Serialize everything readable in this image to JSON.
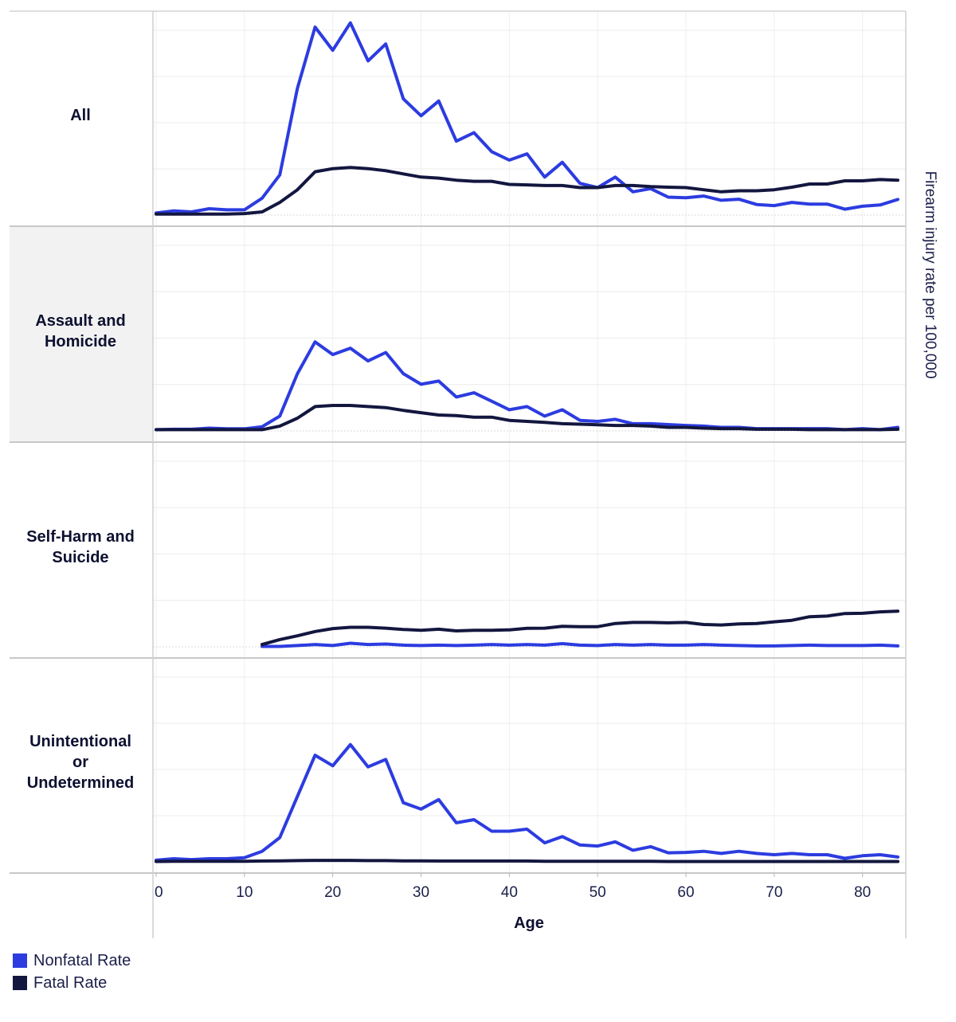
{
  "chart_data": {
    "type": "line",
    "title": "",
    "xlabel": "Age",
    "ylabel": "Firearm injury rate per 100,000",
    "xlim": [
      0,
      84
    ],
    "xticks": [
      0,
      10,
      20,
      30,
      40,
      50,
      60,
      70,
      80
    ],
    "grid": true,
    "legend_position": "bottom-left",
    "colors": {
      "nonfatal": "#2c3ce0",
      "fatal": "#13173f",
      "label_panel_highlight": "#f2f2f2"
    },
    "legend": [
      {
        "key": "nonfatal",
        "label": "Nonfatal Rate"
      },
      {
        "key": "fatal",
        "label": "Fatal Rate"
      }
    ],
    "panels": [
      {
        "label": "All",
        "label_lines": [
          "All"
        ],
        "ylim": [
          0,
          92
        ],
        "series": [
          {
            "key": "nonfatal",
            "name": "Nonfatal Rate",
            "x": [
              0,
              2,
              4,
              6,
              8,
              10,
              12,
              14,
              16,
              18,
              20,
              22,
              24,
              26,
              28,
              30,
              32,
              34,
              36,
              38,
              40,
              42,
              44,
              46,
              48,
              50,
              52,
              54,
              56,
              58,
              60,
              62,
              64,
              66,
              68,
              70,
              72,
              74,
              76,
              78,
              80,
              82,
              84
            ],
            "y": [
              1,
              2,
              1.5,
              3,
              2.5,
              2.5,
              8,
              19,
              60,
              89,
              78,
              91,
              73,
              81,
              55,
              47,
              54,
              35,
              39,
              30,
              26,
              29,
              18,
              25,
              15,
              13,
              18,
              11,
              12.5,
              8.5,
              8.2,
              9,
              7,
              7.5,
              5,
              4.5,
              6,
              5.2,
              5.2,
              2.8,
              4.2,
              4.8,
              7.4
            ]
          },
          {
            "key": "fatal",
            "name": "Fatal Rate",
            "x": [
              0,
              2,
              4,
              6,
              8,
              10,
              12,
              14,
              16,
              18,
              20,
              22,
              24,
              26,
              28,
              30,
              32,
              34,
              36,
              38,
              40,
              42,
              44,
              46,
              48,
              50,
              52,
              54,
              56,
              58,
              60,
              62,
              64,
              66,
              68,
              70,
              72,
              74,
              76,
              78,
              80,
              82,
              84
            ],
            "y": [
              0.5,
              0.5,
              0.5,
              0.5,
              0.5,
              0.7,
              1.5,
              6,
              12,
              20.5,
              22,
              22.5,
              22,
              21,
              19.5,
              18,
              17.5,
              16.5,
              16,
              16,
              14.5,
              14.3,
              14,
              14,
              13,
              13,
              14,
              14,
              13.5,
              13.2,
              13,
              12,
              11,
              11.5,
              11.5,
              12,
              13.2,
              14.7,
              14.7,
              16.2,
              16.2,
              16.8,
              16.5
            ]
          }
        ]
      },
      {
        "label": "Assault and Homicide",
        "label_lines": [
          "Assault and",
          "Homicide"
        ],
        "highlighted": true,
        "ylim": [
          0,
          92
        ],
        "series": [
          {
            "key": "nonfatal",
            "name": "Nonfatal Rate",
            "x": [
              0,
              2,
              4,
              6,
              8,
              10,
              12,
              14,
              16,
              18,
              20,
              22,
              24,
              26,
              28,
              30,
              32,
              34,
              36,
              38,
              40,
              42,
              44,
              46,
              48,
              50,
              52,
              54,
              56,
              58,
              60,
              62,
              64,
              66,
              68,
              70,
              72,
              74,
              76,
              78,
              80,
              82,
              84
            ],
            "y": [
              0.6,
              0.8,
              0.8,
              1.3,
              1,
              1,
              2,
              7,
              27,
              42,
              36,
              39,
              33,
              37,
              27,
              22,
              23.5,
              16,
              18,
              14,
              10,
              11.5,
              7,
              10,
              5,
              4.5,
              5.5,
              3.4,
              3.4,
              3,
              2.6,
              2.3,
              1.7,
              1.7,
              1.1,
              1.1,
              1.1,
              1.1,
              1.1,
              0.6,
              1.1,
              0.6,
              1.7
            ]
          },
          {
            "key": "fatal",
            "name": "Fatal Rate",
            "x": [
              0,
              2,
              4,
              6,
              8,
              10,
              12,
              14,
              16,
              18,
              20,
              22,
              24,
              26,
              28,
              30,
              32,
              34,
              36,
              38,
              40,
              42,
              44,
              46,
              48,
              50,
              52,
              54,
              56,
              58,
              60,
              62,
              64,
              66,
              68,
              70,
              72,
              74,
              76,
              78,
              80,
              82,
              84
            ],
            "y": [
              0.6,
              0.6,
              0.6,
              0.6,
              0.6,
              0.6,
              0.6,
              2.3,
              6,
              11.5,
              12,
              12,
              11.5,
              11,
              9.7,
              8.6,
              7.5,
              7.2,
              6.5,
              6.5,
              5,
              4.5,
              4,
              3.4,
              3.2,
              2.9,
              2.6,
              2.6,
              2.3,
              1.7,
              1.7,
              1.3,
              1.1,
              1.1,
              0.8,
              0.8,
              0.8,
              0.6,
              0.6,
              0.6,
              0.6,
              0.6,
              0.8
            ]
          }
        ]
      },
      {
        "label": "Self-Harm and Suicide",
        "label_lines": [
          "Self-Harm and",
          "Suicide"
        ],
        "ylim": [
          0,
          92
        ],
        "series": [
          {
            "key": "nonfatal",
            "name": "Nonfatal Rate",
            "x": [
              12,
              14,
              16,
              18,
              20,
              22,
              24,
              26,
              28,
              30,
              32,
              34,
              36,
              38,
              40,
              42,
              44,
              46,
              48,
              50,
              52,
              54,
              56,
              58,
              60,
              62,
              64,
              66,
              68,
              70,
              72,
              74,
              76,
              78,
              80,
              82,
              84
            ],
            "y": [
              0.2,
              0.2,
              0.6,
              1.1,
              0.6,
              1.7,
              1.1,
              1.3,
              0.8,
              0.6,
              0.8,
              0.6,
              0.8,
              1.1,
              0.8,
              1.1,
              0.8,
              1.5,
              0.8,
              0.6,
              1.1,
              0.8,
              1.1,
              0.8,
              0.8,
              1.1,
              0.8,
              0.6,
              0.4,
              0.4,
              0.6,
              0.8,
              0.6,
              0.6,
              0.6,
              0.8,
              0.4
            ]
          },
          {
            "key": "fatal",
            "name": "Fatal Rate",
            "x": [
              12,
              14,
              16,
              18,
              20,
              22,
              24,
              26,
              28,
              30,
              32,
              34,
              36,
              38,
              40,
              42,
              44,
              46,
              48,
              50,
              52,
              54,
              56,
              58,
              60,
              62,
              64,
              66,
              68,
              70,
              72,
              74,
              76,
              78,
              80,
              82,
              84
            ],
            "y": [
              1.1,
              3.4,
              5.2,
              7.2,
              8.6,
              9.2,
              9.2,
              8.8,
              8.2,
              7.8,
              8.3,
              7.5,
              7.8,
              7.8,
              8,
              8.7,
              8.8,
              9.7,
              9.5,
              9.5,
              11,
              11.5,
              11.5,
              11.3,
              11.5,
              10.5,
              10.3,
              10.8,
              11,
              11.8,
              12.5,
              14.2,
              14.5,
              15.7,
              15.8,
              16.5,
              16.8
            ]
          }
        ]
      },
      {
        "label": "Unintentional or Undetermined",
        "label_lines": [
          "Unintentional",
          "or",
          "Undetermined"
        ],
        "ylim": [
          0,
          92
        ],
        "series": [
          {
            "key": "nonfatal",
            "name": "Nonfatal Rate",
            "x": [
              0,
              2,
              4,
              6,
              8,
              10,
              12,
              14,
              16,
              18,
              20,
              22,
              24,
              26,
              28,
              30,
              32,
              34,
              36,
              38,
              40,
              42,
              44,
              46,
              48,
              50,
              52,
              54,
              56,
              58,
              60,
              62,
              64,
              66,
              68,
              70,
              72,
              74,
              76,
              78,
              80,
              82,
              84
            ],
            "y": [
              0.8,
              1.5,
              1.1,
              1.5,
              1.5,
              2,
              5,
              11.5,
              31,
              50.5,
              45.5,
              55.5,
              45,
              48.5,
              28,
              25,
              29.5,
              18.5,
              20,
              14.5,
              14.5,
              15.5,
              9,
              12,
              8,
              7.5,
              9.5,
              5.5,
              7.2,
              4.3,
              4.5,
              5,
              4,
              5,
              4,
              3.4,
              4,
              3.4,
              3.4,
              1.7,
              2.9,
              3.4,
              2.3
            ]
          },
          {
            "key": "fatal",
            "name": "Fatal Rate",
            "x": [
              0,
              2,
              4,
              6,
              8,
              10,
              12,
              14,
              16,
              18,
              20,
              22,
              24,
              26,
              28,
              30,
              32,
              34,
              36,
              38,
              40,
              42,
              44,
              46,
              48,
              50,
              52,
              54,
              56,
              58,
              60,
              62,
              64,
              66,
              68,
              70,
              72,
              74,
              76,
              78,
              80,
              82,
              84
            ],
            "y": [
              0.2,
              0.3,
              0.3,
              0.3,
              0.3,
              0.3,
              0.4,
              0.5,
              0.6,
              0.7,
              0.7,
              0.7,
              0.6,
              0.6,
              0.5,
              0.5,
              0.4,
              0.4,
              0.4,
              0.4,
              0.4,
              0.4,
              0.3,
              0.3,
              0.3,
              0.3,
              0.3,
              0.3,
              0.3,
              0.2,
              0.2,
              0.2,
              0.2,
              0.2,
              0.2,
              0.2,
              0.2,
              0.2,
              0.2,
              0.2,
              0.2,
              0.2,
              0.2
            ]
          }
        ]
      }
    ]
  }
}
